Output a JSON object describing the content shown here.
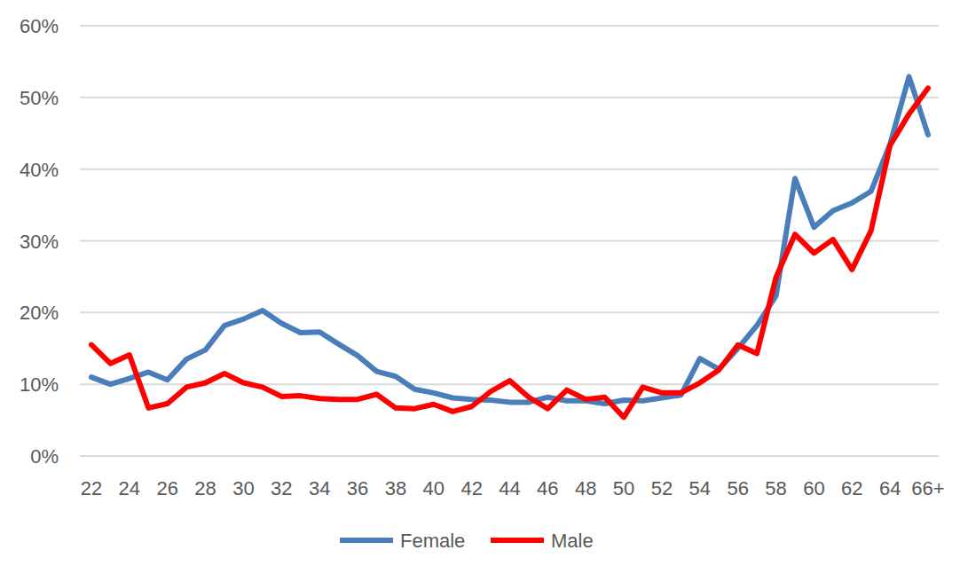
{
  "chart_data": {
    "type": "line",
    "categories": [
      "22",
      null,
      "24",
      null,
      "26",
      null,
      "28",
      null,
      "30",
      null,
      "32",
      null,
      "34",
      null,
      "36",
      null,
      "38",
      null,
      "40",
      null,
      "42",
      null,
      "44",
      null,
      "46",
      null,
      "48",
      null,
      "50",
      null,
      "52",
      null,
      "54",
      null,
      "56",
      null,
      "58",
      null,
      "60",
      null,
      "62",
      null,
      "64",
      null,
      "66+"
    ],
    "series": [
      {
        "name": "Female",
        "color": "#4a7ebb",
        "values": [
          11,
          10,
          10.8,
          11.7,
          10.6,
          13.5,
          14.8,
          18.2,
          19.1,
          20.3,
          18.5,
          17.2,
          17.3,
          15.6,
          14,
          11.8,
          11.1,
          9.3,
          8.8,
          8.1,
          7.9,
          7.8,
          7.5,
          7.5,
          8.2,
          7.7,
          7.7,
          7.3,
          7.8,
          7.7,
          8.1,
          8.5,
          13.6,
          12.1,
          15,
          18.2,
          22.3,
          38.7,
          31.9,
          34.2,
          35.3,
          36.9,
          43.5,
          52.9,
          44.8
        ]
      },
      {
        "name": "Male",
        "color": "#ff0000",
        "values": [
          15.5,
          12.9,
          14.1,
          6.7,
          7.3,
          9.6,
          10.2,
          11.5,
          10.2,
          9.6,
          8.3,
          8.4,
          8,
          7.9,
          7.9,
          8.6,
          6.7,
          6.6,
          7.2,
          6.2,
          6.9,
          9,
          10.5,
          8.2,
          6.6,
          9.2,
          7.9,
          8.2,
          5.4,
          9.6,
          8.8,
          8.8,
          10.2,
          12,
          15.5,
          14.3,
          24.9,
          30.9,
          28.3,
          30.2,
          26,
          31.4,
          43.3,
          47.7,
          51.3
        ]
      }
    ],
    "ylim": [
      0,
      60
    ],
    "yticks": [
      {
        "value": 0,
        "label": "0%"
      },
      {
        "value": 10,
        "label": "10%"
      },
      {
        "value": 20,
        "label": "20%"
      },
      {
        "value": 30,
        "label": "30%"
      },
      {
        "value": 40,
        "label": "40%"
      },
      {
        "value": 50,
        "label": "50%"
      },
      {
        "value": 60,
        "label": "60%"
      }
    ],
    "grid": true,
    "legend": "bottom"
  }
}
